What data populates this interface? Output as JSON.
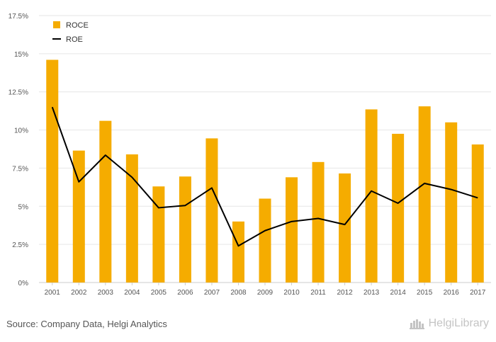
{
  "chart_data": {
    "type": "bar",
    "categories": [
      "2001",
      "2002",
      "2003",
      "2004",
      "2005",
      "2006",
      "2007",
      "2008",
      "2009",
      "2010",
      "2011",
      "2012",
      "2013",
      "2014",
      "2015",
      "2016",
      "2017"
    ],
    "series": [
      {
        "name": "ROCE",
        "type": "bar",
        "color": "#f5ac00",
        "values": [
          14.6,
          8.65,
          10.6,
          8.4,
          6.3,
          6.95,
          9.45,
          4.0,
          5.5,
          6.9,
          7.9,
          7.15,
          11.35,
          9.75,
          11.55,
          10.5,
          9.05
        ]
      },
      {
        "name": "ROE",
        "type": "line",
        "color": "#000000",
        "values": [
          11.5,
          6.6,
          8.35,
          6.9,
          4.9,
          5.05,
          6.2,
          2.4,
          3.4,
          4.0,
          4.2,
          3.8,
          6.0,
          5.2,
          6.5,
          6.1,
          5.55
        ]
      }
    ],
    "yticks": [
      "0%",
      "2.5%",
      "5%",
      "7.5%",
      "10%",
      "12.5%",
      "15%",
      "17.5%"
    ],
    "ylim": [
      0,
      17.5
    ],
    "grid": true,
    "legend": "top-left"
  },
  "source": "Source: Company Data, Helgi Analytics",
  "brand": "HelgiLibrary"
}
